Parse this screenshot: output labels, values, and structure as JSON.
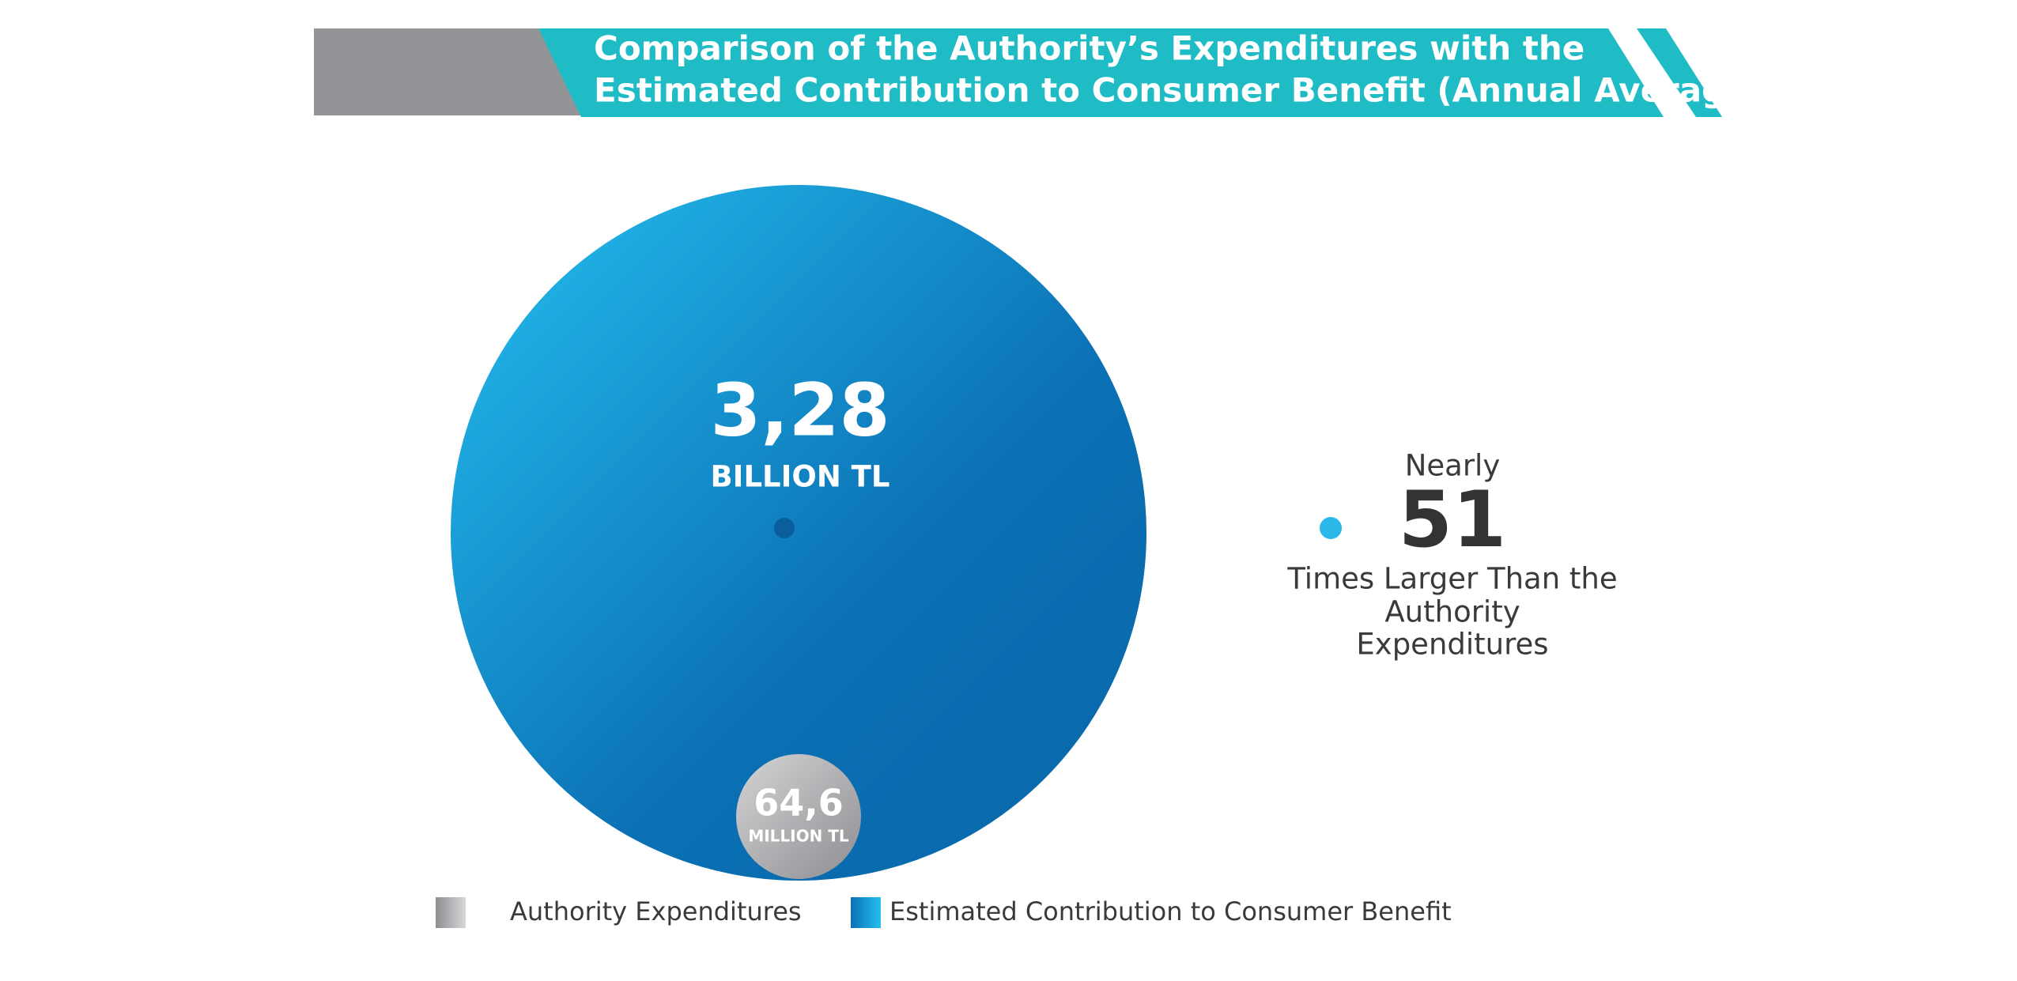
{
  "title": [
    "Comparison of the Authority’s Expenditures with the",
    "Estimated Contribution to Consumer Benefit (Annual Average)"
  ],
  "big_bubble": {
    "value": "3,28",
    "unit": "BILLION TL"
  },
  "small_bubble": {
    "value": "64,6",
    "unit": "MILLION TL"
  },
  "callout": {
    "prefix": "Nearly",
    "value": "51",
    "lines": [
      "Times Larger Than the",
      "Authority",
      "Expenditures"
    ]
  },
  "legend": [
    "Authority Expenditures",
    "Estimated Contribution to Consumer Benefit"
  ]
}
